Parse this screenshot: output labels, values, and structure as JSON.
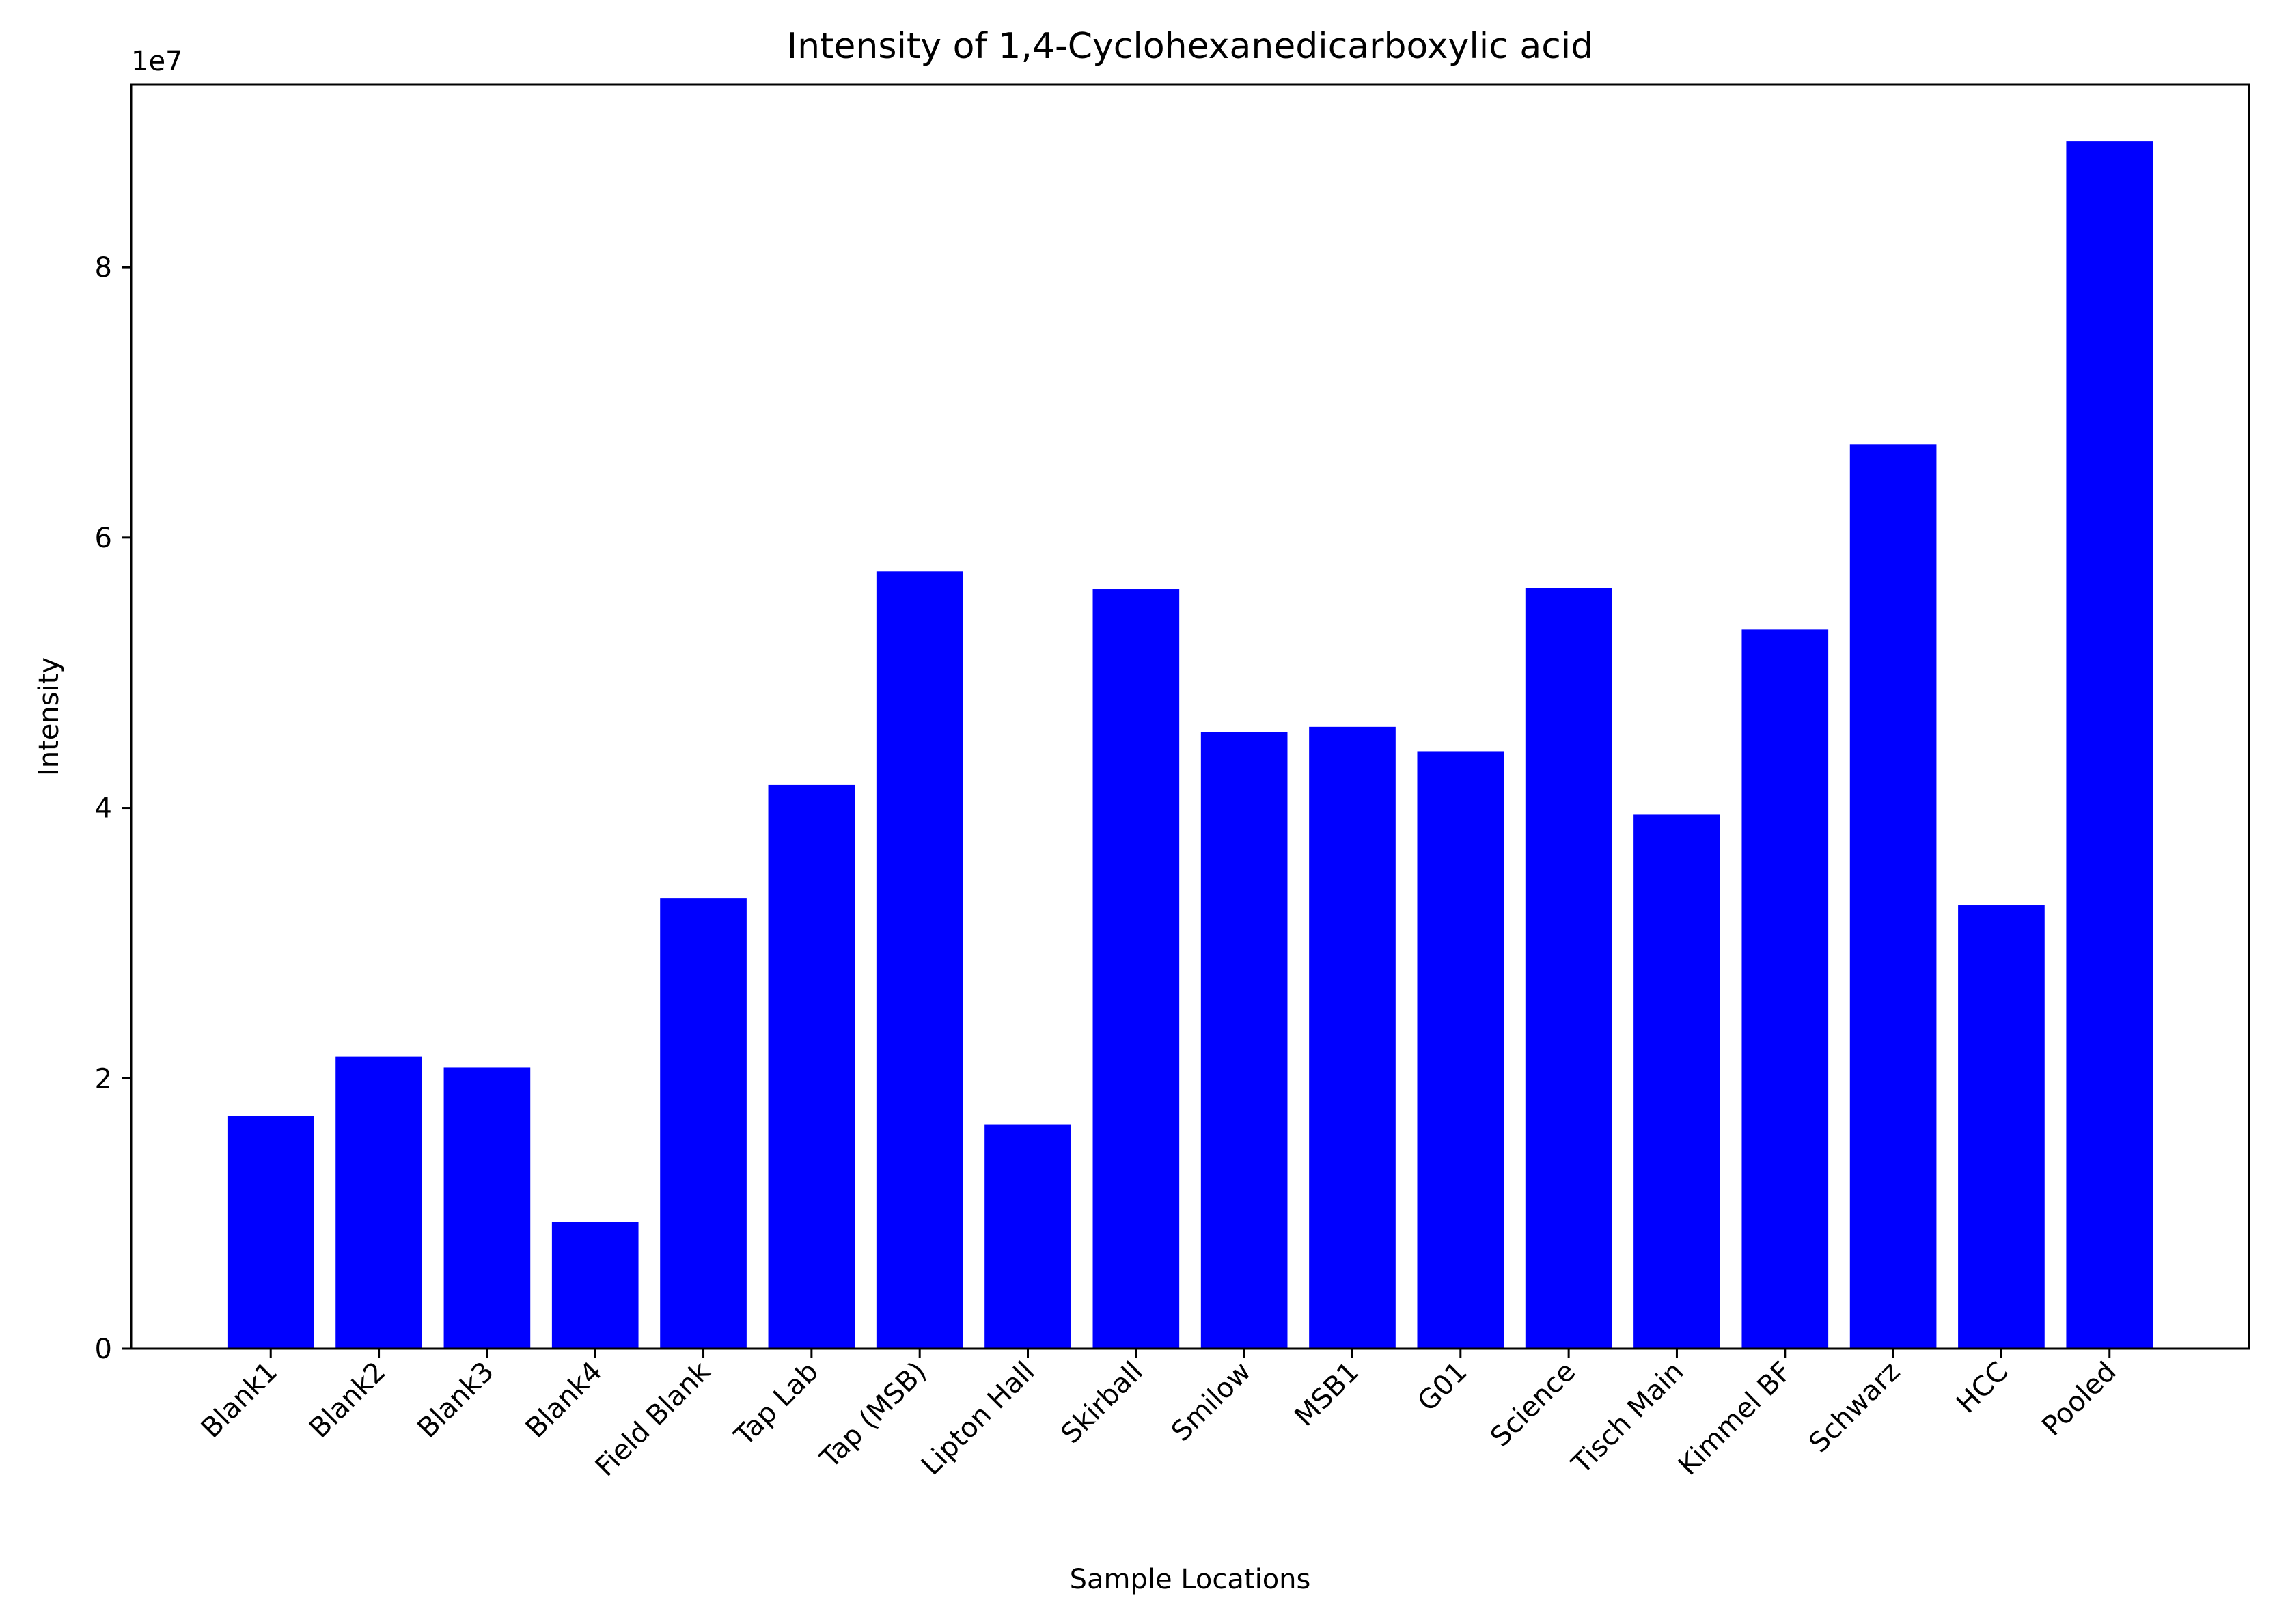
{
  "chart_data": {
    "type": "bar",
    "title": "Intensity of 1,4-Cyclohexanedicarboxylic acid",
    "xlabel": "Sample Locations",
    "ylabel": "Intensity",
    "y_offset_label": "1e7",
    "y_scale_factor": 10000000,
    "ylim": [
      0,
      93500000
    ],
    "yticks": [
      0,
      20000000,
      40000000,
      60000000,
      80000000
    ],
    "ytick_labels": [
      "0",
      "2",
      "4",
      "6",
      "8"
    ],
    "grid": false,
    "bar_color": "#0000ff",
    "categories": [
      "Blank1",
      "Blank2",
      "Blank3",
      "Blank4",
      "Field Blank",
      "Tap Lab",
      "Tap (MSB)",
      "Lipton Hall",
      "Skirball",
      "Smilow",
      "MSB1",
      "G01",
      "Science",
      "Tisch Main",
      "Kimmel BF",
      "Schwarz",
      "HCC",
      "Pooled"
    ],
    "values": [
      17200000,
      21600000,
      20800000,
      9400000,
      33300000,
      41700000,
      57500000,
      16600000,
      56200000,
      45600000,
      46000000,
      44200000,
      56300000,
      39500000,
      53200000,
      66900000,
      32800000,
      89300000
    ]
  }
}
